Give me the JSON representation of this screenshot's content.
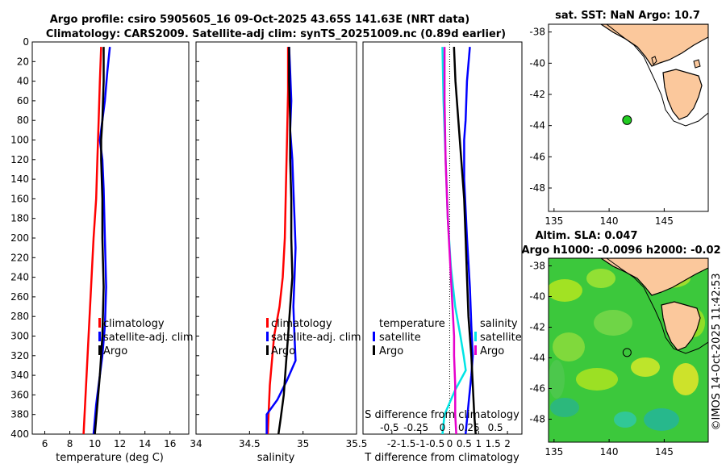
{
  "figure": {
    "title_line1": "Argo profile: csiro 5905605_16 09-Oct-2025 43.65S 141.63E (NRT data)",
    "title_line2": "Climatology: CARS2009. Satellite-adj clim: synTS_20251009.nc (0.89d earlier)",
    "watermark": "©IMOS 14-Oct-2025 11:42:53"
  },
  "chart_data": [
    {
      "id": "temperature",
      "type": "line",
      "xlabel": "temperature (deg C)",
      "ylabel": "",
      "xlim": [
        5,
        17.5
      ],
      "ylim": [
        0,
        400
      ],
      "xticks": [
        6,
        8,
        10,
        12,
        14,
        16
      ],
      "yticks": [
        0,
        20,
        40,
        60,
        80,
        100,
        120,
        140,
        160,
        180,
        200,
        220,
        240,
        260,
        280,
        300,
        320,
        340,
        360,
        380,
        400
      ],
      "legend": [
        "climatology",
        "satellite-adj. clim",
        "Argo"
      ],
      "series": [
        {
          "name": "climatology",
          "color": "#ff0000",
          "x": [
            10.5,
            10.4,
            10.3,
            10.2,
            10.1,
            9.9,
            9.7,
            9.5,
            9.3,
            9.1
          ],
          "y": [
            5,
            40,
            80,
            120,
            160,
            200,
            250,
            300,
            350,
            400
          ]
        },
        {
          "name": "satellite-adj. clim",
          "color": "#0000ff",
          "x": [
            11.2,
            11.0,
            10.8,
            10.6,
            10.4,
            10.6,
            10.7,
            10.8,
            10.9,
            10.8,
            10.6,
            10.4,
            10.1,
            9.9
          ],
          "y": [
            5,
            30,
            60,
            80,
            100,
            120,
            150,
            200,
            250,
            290,
            320,
            340,
            370,
            400
          ]
        },
        {
          "name": "Argo",
          "color": "#000000",
          "x": [
            10.7,
            10.7,
            10.6,
            10.5,
            10.5,
            10.6,
            10.6,
            10.7,
            10.6,
            10.4,
            10.2,
            10.0
          ],
          "y": [
            5,
            40,
            80,
            100,
            120,
            160,
            200,
            250,
            300,
            340,
            370,
            400
          ]
        }
      ]
    },
    {
      "id": "salinity",
      "type": "line",
      "xlabel": "salinity",
      "ylabel": "",
      "xlim": [
        34,
        35.5
      ],
      "ylim": [
        0,
        400
      ],
      "xticks": [
        34,
        34.5,
        35,
        35.5
      ],
      "legend": [
        "climatology",
        "satellite-adj. clim",
        "Argo"
      ],
      "series": [
        {
          "name": "climatology",
          "color": "#ff0000",
          "x": [
            34.86,
            34.86,
            34.85,
            34.84,
            34.83,
            34.81,
            34.78,
            34.73,
            34.69,
            34.67
          ],
          "y": [
            5,
            50,
            100,
            150,
            200,
            240,
            270,
            300,
            350,
            400
          ]
        },
        {
          "name": "satellite-adj. clim",
          "color": "#0000ff",
          "x": [
            34.87,
            34.88,
            34.89,
            34.88,
            34.9,
            34.91,
            34.92,
            34.93,
            34.92,
            34.91,
            34.92,
            34.93,
            34.85,
            34.76,
            34.66,
            34.66
          ],
          "y": [
            5,
            30,
            60,
            90,
            120,
            150,
            180,
            210,
            240,
            270,
            300,
            325,
            345,
            365,
            380,
            400
          ]
        },
        {
          "name": "Argo",
          "color": "#000000",
          "x": [
            34.87,
            34.87,
            34.88,
            34.88,
            34.89,
            34.89,
            34.9,
            34.88,
            34.86,
            34.84,
            34.82,
            34.79,
            34.77
          ],
          "y": [
            5,
            40,
            80,
            120,
            160,
            200,
            240,
            270,
            300,
            330,
            360,
            385,
            400
          ]
        }
      ]
    },
    {
      "id": "difference",
      "type": "line",
      "xlabel": "T difference from climatology",
      "x2label": "S difference from climatology",
      "xlim": [
        -3,
        2.5
      ],
      "x2lim": [
        -0.75,
        0.75
      ],
      "ylim": [
        0,
        400
      ],
      "xticks": [
        -2,
        -1,
        0,
        1,
        2
      ],
      "xticklabels": [
        "-2",
        "-1.5",
        "-1",
        "-0.5",
        "0",
        "0.5",
        "1",
        "1.5",
        "2"
      ],
      "xticklabel_values": [
        -2,
        -1.5,
        -1,
        -0.5,
        0,
        0.5,
        1,
        1.5,
        2
      ],
      "x2ticklabels": [
        "-0.5",
        "-0.25",
        "0",
        "0.25",
        "0.5"
      ],
      "x2ticklabel_values": [
        -0.5,
        -0.25,
        0,
        0.25,
        0.5
      ],
      "legend_temperature_title": "temperature",
      "legend_salinity_title": "salinity",
      "legend_temperature": [
        "satellite",
        "Argo"
      ],
      "legend_salinity": [
        "satellite",
        "Argo"
      ],
      "series": [
        {
          "name": "T satellite",
          "color": "#0000ff",
          "axis": "T",
          "x": [
            0.7,
            0.6,
            0.55,
            0.5,
            0.5,
            0.6,
            0.7,
            0.75,
            0.8,
            0.75,
            0.65,
            0.55
          ],
          "y": [
            5,
            40,
            80,
            100,
            140,
            200,
            250,
            290,
            320,
            340,
            370,
            400
          ]
        },
        {
          "name": "T Argo",
          "color": "#000000",
          "axis": "T",
          "x": [
            0.15,
            0.2,
            0.3,
            0.4,
            0.5,
            0.55,
            0.6,
            0.65,
            0.7,
            0.75,
            0.8,
            0.85,
            0.9
          ],
          "y": [
            5,
            40,
            80,
            120,
            160,
            200,
            240,
            280,
            300,
            320,
            350,
            380,
            400
          ]
        },
        {
          "name": "S satellite",
          "color": "#00e5e5",
          "axis": "S",
          "x": [
            0.0,
            0.01,
            0.03,
            0.05,
            0.08,
            0.12,
            0.17,
            0.2,
            0.22,
            0.12,
            0.02,
            0.0
          ],
          "y": [
            5,
            60,
            120,
            180,
            230,
            270,
            300,
            320,
            335,
            355,
            380,
            400
          ]
        },
        {
          "name": "S Argo",
          "color": "#e600cc",
          "axis": "S",
          "x": [
            0.02,
            0.02,
            0.03,
            0.05,
            0.08,
            0.1,
            0.11,
            0.11,
            0.12,
            0.12,
            0.13
          ],
          "y": [
            5,
            60,
            120,
            180,
            240,
            280,
            300,
            320,
            350,
            380,
            400
          ]
        }
      ]
    },
    {
      "id": "sst_map",
      "type": "map",
      "title": "sat. SST: NaN Argo: 10.7",
      "xticks": [
        135,
        140,
        145
      ],
      "yticks": [
        -38,
        -40,
        -42,
        -44,
        -46,
        -48
      ],
      "xlim": [
        134.5,
        149
      ],
      "ylim": [
        -49.5,
        -37.5
      ],
      "land_color": "#fbc89c",
      "marker": {
        "lon": 141.63,
        "lat": -43.65,
        "color": "#22cc22"
      }
    },
    {
      "id": "sla_map",
      "type": "map",
      "title_line1": "Altim. SLA: 0.047",
      "title_line2": "Argo h1000: -0.0096 h2000: -0.02",
      "xticks": [
        135,
        140,
        145
      ],
      "yticks": [
        -38,
        -40,
        -42,
        -44,
        -46,
        -48
      ],
      "xlim": [
        134.5,
        149
      ],
      "ylim": [
        -49.5,
        -37.5
      ],
      "land_color": "#fbc89c",
      "marker": {
        "lon": 141.63,
        "lat": -43.65
      }
    }
  ]
}
